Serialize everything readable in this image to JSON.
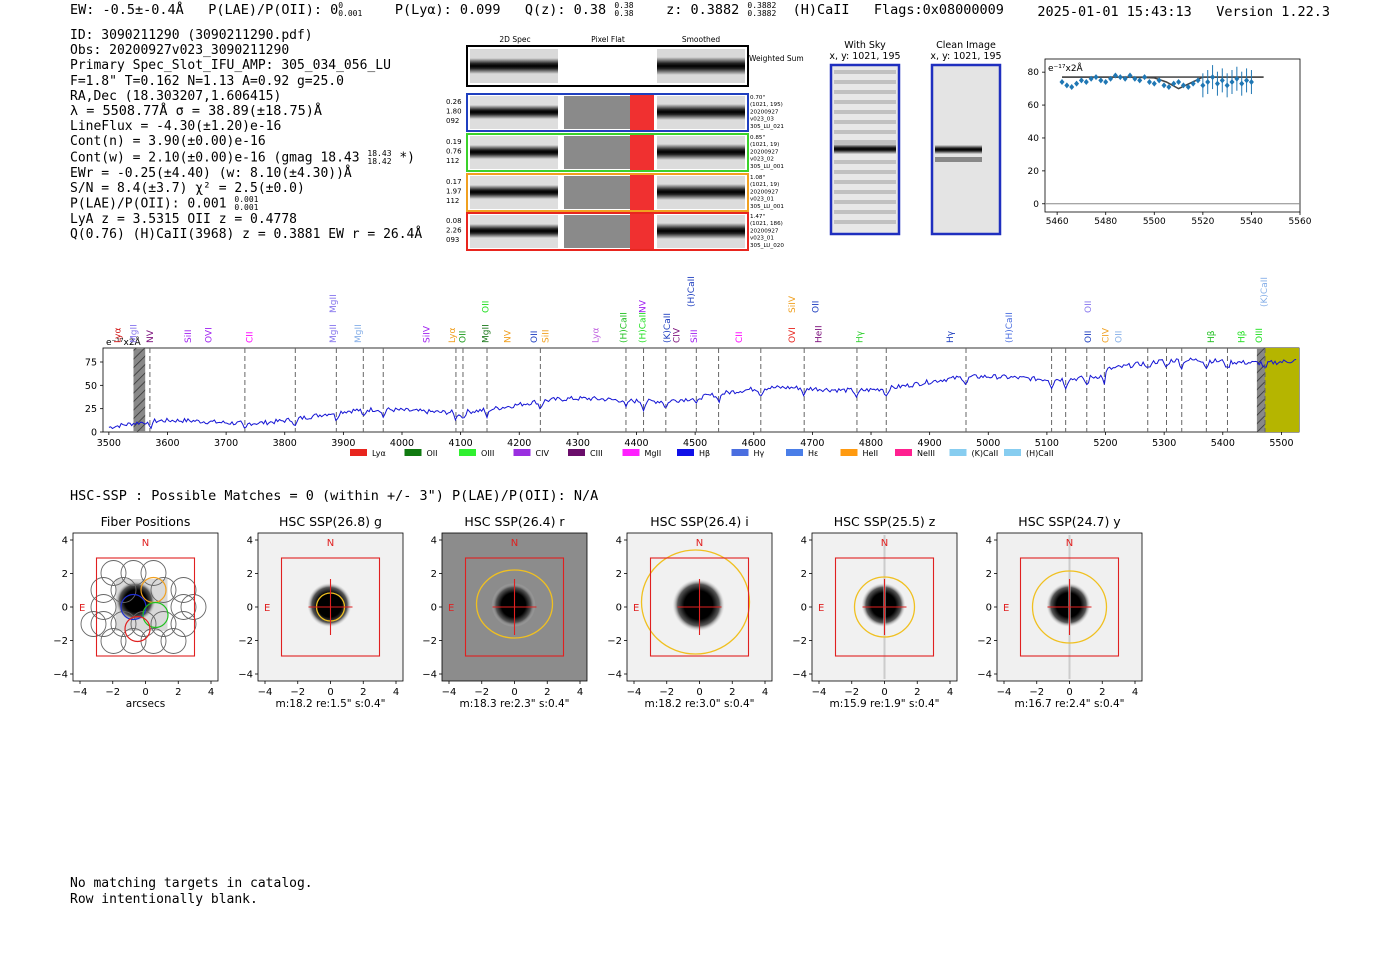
{
  "header": {
    "ew": "EW: -0.5±-0.4Å",
    "plae_label": "P(LAE)/P(OII): 0",
    "plae_sup": "0",
    "plae_sub": "0.001",
    "plya": "P(Lyα): 0.099",
    "qz_label": "Q(z): 0.38",
    "qz_sup": "0.38",
    "qz_sub": "0.38",
    "z_label": "z: 0.3882",
    "z_sup": "0.3882",
    "z_sub": "0.3882",
    "ident": "(H)CaII",
    "flags": "Flags:0x08000009",
    "datetime": "2025-01-01 15:43:13",
    "version": "Version 1.22.3"
  },
  "info": {
    "id": "ID: 3090211290 (3090211290.pdf)",
    "obs": "Obs: 20200927v023_3090211290",
    "slot": "Primary Spec_Slot_IFU_AMP: 305_034_056_LU",
    "params": "F=1.8\"  T=0.162  N=1.13  A=0.92  g=25.0",
    "radec": "RA,Dec (18.303207,1.606415)",
    "wave": "λ = 5508.77Å  σ = 38.89(±18.75)Å",
    "lineflux": "LineFlux = -4.30(±1.20)e-16",
    "contn": "Cont(n) = 3.90(±0.00)e-16",
    "contw": "Cont(w) = 2.10(±0.00)e-16 (gmag 18.43",
    "contw_sup": "18.43",
    "contw_sub": "18.42",
    "contw_end": " *)",
    "ewr": "EWr = -0.25(±4.40) (w: 8.10(±4.30))Å",
    "sn": "S/N = 8.4(±3.7)  χ² = 2.5(±0.0)",
    "plae": "P(LAE)/P(OII): 0.001",
    "plae_sup": "0.001",
    "plae_sub": "0.001",
    "lya": "LyA z = 3.5315  OII z = 0.4778",
    "q": "Q(0.76) (H)CaII(3968) z = 0.3881  EW r = 26.4Å"
  },
  "cutouts": {
    "headers": [
      "2D Spec",
      "Pixel Flat",
      "Smoothed"
    ],
    "weighted": "Weighted Sum",
    "rows": [
      {
        "left": [
          "0.26",
          "1.80",
          "092"
        ],
        "right": [
          "0.70\"",
          "(1021, 195)",
          "20200927",
          "v023_03",
          "305_LU_021"
        ],
        "color": "#1f3fbf"
      },
      {
        "left": [
          "0.19",
          "0.76",
          "112"
        ],
        "right": [
          "0.85\"",
          "(1021, 19)",
          "20200927",
          "v023_02",
          "305_LU_001"
        ],
        "color": "#3ad12a"
      },
      {
        "left": [
          "0.17",
          "1.97",
          "112"
        ],
        "right": [
          "1.08\"",
          "(1021, 19)",
          "20200927",
          "v023_01",
          "305_LU_001"
        ],
        "color": "#f0a020"
      },
      {
        "left": [
          "0.08",
          "2.26",
          "093"
        ],
        "right": [
          "1.47\"",
          "(1021, 186)",
          "20200927",
          "v023_01",
          "305_LU_020"
        ],
        "color": "#e8251e"
      }
    ]
  },
  "sky_panels": {
    "with_sky": [
      "With Sky",
      "x, y: 1021, 195"
    ],
    "clean": [
      "Clean Image",
      "x, y: 1021, 195"
    ]
  },
  "zoom_plot": {
    "type": "scatter",
    "ylabel": "e⁻¹⁷x2Å",
    "xlim": [
      5455,
      5560
    ],
    "ylim": [
      -5,
      88
    ],
    "xticks": [
      5460,
      5480,
      5500,
      5520,
      5540,
      5560
    ],
    "yticks": [
      0,
      20,
      40,
      60,
      80
    ],
    "points_x": [
      5462,
      5464,
      5466,
      5468,
      5470,
      5472,
      5474,
      5476,
      5478,
      5480,
      5482,
      5484,
      5486,
      5488,
      5490,
      5492,
      5494,
      5496,
      5498,
      5500,
      5502,
      5504,
      5506,
      5508,
      5510,
      5512,
      5514,
      5516,
      5518,
      5520,
      5522,
      5524,
      5526,
      5528,
      5530,
      5532,
      5534,
      5536,
      5538,
      5540
    ],
    "points_y": [
      74,
      72,
      71,
      73,
      75,
      74,
      76,
      77,
      75,
      74,
      76,
      78,
      77,
      76,
      78,
      76,
      75,
      77,
      74,
      73,
      75,
      72,
      71,
      73,
      74,
      72,
      71,
      73,
      75,
      72,
      74,
      77,
      73,
      75,
      72,
      74,
      76,
      73,
      75,
      74
    ],
    "fit_x": [
      5462,
      5470,
      5480,
      5490,
      5500,
      5505,
      5510,
      5515,
      5520,
      5530,
      5545
    ],
    "fit_y": [
      77,
      77,
      77,
      77,
      76.5,
      74,
      70,
      73.5,
      77,
      77,
      77
    ],
    "continuum": 77
  },
  "spectrum": {
    "type": "line",
    "xlim": [
      3490,
      5530
    ],
    "ylim": [
      0,
      90
    ],
    "xticks": [
      3500,
      3600,
      3700,
      3800,
      3900,
      4000,
      4100,
      4200,
      4300,
      4400,
      4500,
      4600,
      4700,
      4800,
      4900,
      5000,
      5100,
      5200,
      5300,
      5400,
      5500
    ],
    "yticks": [
      0,
      25,
      50,
      75
    ],
    "ylabel": "e⁻¹⁷x2Å",
    "highlight_band": [
      3542,
      3562
    ],
    "olive_band": [
      5465,
      5530
    ],
    "lines": [
      {
        "name": "Lyα",
        "x": 3515,
        "color": "#d01010",
        "tier": 0
      },
      {
        "name": "MgII",
        "x": 3542,
        "color": "#8877ee",
        "tier": 0
      },
      {
        "name": "NV",
        "x": 3570,
        "color": "#7a0d7a",
        "tier": 0
      },
      {
        "name": "SiII",
        "x": 3635,
        "color": "#a020f0",
        "tier": 0
      },
      {
        "name": "OVI",
        "x": 3670,
        "color": "#a020f0",
        "tier": 0
      },
      {
        "name": "CII",
        "x": 3740,
        "color": "#ff00ff",
        "tier": 0
      },
      {
        "name": "MgII",
        "x": 3882,
        "color": "#8877ee",
        "tier": 0
      },
      {
        "name": "MgII",
        "x": 3882,
        "color": "#8877ee",
        "tier": 1
      },
      {
        "name": "MgII",
        "x": 3925,
        "color": "#87b0e8",
        "tier": 0
      },
      {
        "name": "SiIV",
        "x": 4042,
        "color": "#a020f0",
        "tier": 0
      },
      {
        "name": "Lyα",
        "x": 4085,
        "color": "#f0a020",
        "tier": 0
      },
      {
        "name": "OII",
        "x": 4103,
        "color": "#1e9c1e",
        "tier": 0
      },
      {
        "name": "MgII",
        "x": 4142,
        "color": "#1e7a1e",
        "tier": 0
      },
      {
        "name": "OII",
        "x": 4142,
        "color": "#20e020",
        "tier": 1
      },
      {
        "name": "NV",
        "x": 4180,
        "color": "#f0a020",
        "tier": 0
      },
      {
        "name": "OII",
        "x": 4225,
        "color": "#1f3fbf",
        "tier": 0
      },
      {
        "name": "SiII",
        "x": 4245,
        "color": "#f0a020",
        "tier": 0
      },
      {
        "name": "Lyα",
        "x": 4330,
        "color": "#c060e0",
        "tier": 0
      },
      {
        "name": "(H)CaII",
        "x": 4378,
        "color": "#20c020",
        "tier": 0
      },
      {
        "name": "(H)CaII",
        "x": 4410,
        "color": "#20e020",
        "tier": 0
      },
      {
        "name": "NV",
        "x": 4410,
        "color": "#a020f0",
        "tier": 1
      },
      {
        "name": "(K)CaII",
        "x": 4452,
        "color": "#1f3fbf",
        "tier": 0
      },
      {
        "name": "CIV",
        "x": 4468,
        "color": "#7a0d7a",
        "tier": 0
      },
      {
        "name": "(H)CaII",
        "x": 4493,
        "color": "#1f3fbf",
        "tier": 2
      },
      {
        "name": "SiII",
        "x": 4498,
        "color": "#a020f0",
        "tier": 0
      },
      {
        "name": "CII",
        "x": 4575,
        "color": "#ff00ff",
        "tier": 0
      },
      {
        "name": "OVI",
        "x": 4665,
        "color": "#e8251e",
        "tier": 0
      },
      {
        "name": "SiIV",
        "x": 4665,
        "color": "#f0a020",
        "tier": 1
      },
      {
        "name": "OII",
        "x": 4705,
        "color": "#1f3fbf",
        "tier": 1
      },
      {
        "name": "HeII",
        "x": 4710,
        "color": "#7a0d7a",
        "tier": 0
      },
      {
        "name": "Hγ",
        "x": 4780,
        "color": "#30d030",
        "tier": 0
      },
      {
        "name": "Hγ",
        "x": 4935,
        "color": "#1f3fbf",
        "tier": 0
      },
      {
        "name": "(H)CaII",
        "x": 5035,
        "color": "#4a6ee0",
        "tier": 0
      },
      {
        "name": "OII",
        "x": 5170,
        "color": "#1f3fbf",
        "tier": 0
      },
      {
        "name": "OII",
        "x": 5170,
        "color": "#8877ee",
        "tier": 1
      },
      {
        "name": "CIV",
        "x": 5200,
        "color": "#f0a020",
        "tier": 0
      },
      {
        "name": "OII",
        "x": 5222,
        "color": "#87b0e8",
        "tier": 0
      },
      {
        "name": "Hβ",
        "x": 5380,
        "color": "#20c020",
        "tier": 0
      },
      {
        "name": "Hβ",
        "x": 5432,
        "color": "#20e020",
        "tier": 0
      },
      {
        "name": "OIII",
        "x": 5462,
        "color": "#20e020",
        "tier": 0
      },
      {
        "name": "(K)CaII",
        "x": 5470,
        "color": "#87b0e8",
        "tier": 2
      }
    ],
    "dashed_x": [
      3570,
      3732,
      3818,
      3888,
      3934,
      3968,
      4092,
      4104,
      4145,
      4236,
      4382,
      4412,
      4450,
      4502,
      4540,
      4612,
      4686,
      4776,
      4826,
      4962,
      5108,
      5132,
      5168,
      5198,
      5272,
      5304,
      5330,
      5372,
      5408,
      5472
    ],
    "legend": [
      {
        "label": "Lyα",
        "color": "#e8251e"
      },
      {
        "label": "OII",
        "color": "#107a10"
      },
      {
        "label": "OIII",
        "color": "#30f030"
      },
      {
        "label": "CIV",
        "color": "#9a2fe0"
      },
      {
        "label": "CIII",
        "color": "#6a0d6a"
      },
      {
        "label": "MgII",
        "color": "#ff20ff"
      },
      {
        "label": "Hβ",
        "color": "#1010e8"
      },
      {
        "label": "Hγ",
        "color": "#4a6ee0"
      },
      {
        "label": "Hε",
        "color": "#4a7ee8"
      },
      {
        "label": "HeII",
        "color": "#ff9a10"
      },
      {
        "label": "NeIII",
        "color": "#ff2090"
      },
      {
        "label": "(K)CaII",
        "color": "#87cdf0"
      },
      {
        "label": "(H)CaII",
        "color": "#87cdf0"
      }
    ]
  },
  "hsc": {
    "title": "HSC-SSP : Possible Matches = 0 (within +/- 3\")  P(LAE)/P(OII): N/A",
    "panels": [
      {
        "title": "Fiber Positions",
        "caption": "arcsecs"
      },
      {
        "title": "HSC SSP(26.8) g",
        "caption": "m:18.2  re:1.5\"  s:0.4\""
      },
      {
        "title": "HSC SSP(26.4) r",
        "caption": "m:18.3  re:2.3\"  s:0.4\""
      },
      {
        "title": "HSC SSP(26.4) i",
        "caption": "m:18.2  re:3.0\"  s:0.4\""
      },
      {
        "title": "HSC SSP(25.5) z",
        "caption": "m:15.9  re:1.9\"  s:0.4\""
      },
      {
        "title": "HSC SSP(24.7) y",
        "caption": "m:16.7  re:2.4\"  s:0.4\""
      }
    ],
    "ticks": [
      "−4",
      "−2",
      "0",
      "2",
      "4"
    ],
    "north": "N",
    "east": "E"
  },
  "footer": {
    "line1": "No matching targets in catalog.",
    "line2": "Row intentionally blank."
  }
}
